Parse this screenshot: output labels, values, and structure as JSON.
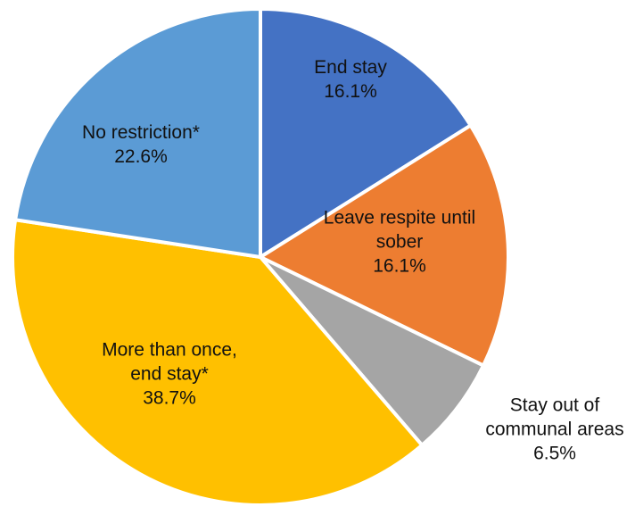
{
  "chart_data": {
    "type": "pie",
    "title": "",
    "slices": [
      {
        "name": "End stay",
        "label_lines": [
          "End stay"
        ],
        "value": 16.1,
        "value_label": "16.1%",
        "color": "#4472C4"
      },
      {
        "name": "Leave respite until sober",
        "label_lines": [
          "Leave respite until",
          "sober"
        ],
        "value": 16.1,
        "value_label": "16.1%",
        "color": "#ED7D31"
      },
      {
        "name": "Stay out of communal areas",
        "label_lines": [
          "Stay out of",
          "communal areas"
        ],
        "value": 6.5,
        "value_label": "6.5%",
        "color": "#A5A5A5"
      },
      {
        "name": "More than once, end stay*",
        "label_lines": [
          "More than once,",
          "end stay*"
        ],
        "value": 38.7,
        "value_label": "38.7%",
        "color": "#FFC000"
      },
      {
        "name": "No restriction*",
        "label_lines": [
          "No restriction*"
        ],
        "value": 22.6,
        "value_label": "22.6%",
        "color": "#5B9BD5"
      }
    ],
    "start_angle": "12 o'clock",
    "direction": "clockwise",
    "legend": "none",
    "labels": "data labels with category name and percentage"
  }
}
